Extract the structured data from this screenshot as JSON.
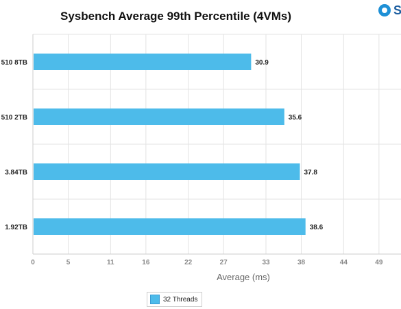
{
  "chart_data": {
    "type": "bar",
    "orientation": "horizontal",
    "title": "Sysbench Average 99th Percentile (4VMs)",
    "xlabel": "Average (ms)",
    "ylabel": "",
    "categories": [
      "510 8TB",
      "510 2TB",
      "3.84TB",
      "1.92TB"
    ],
    "series": [
      {
        "name": "32 Threads",
        "values": [
          30.9,
          35.6,
          37.8,
          38.6
        ],
        "color": "#4dbbea"
      }
    ],
    "xlim": [
      0,
      52.8
    ],
    "xticks": [
      0,
      5,
      11,
      16,
      22,
      27,
      33,
      38,
      44,
      49
    ],
    "grid": true,
    "legend_position": "bottom"
  },
  "brand": {
    "text": "S",
    "icon": "brand-circle-icon"
  },
  "colors": {
    "grid": "#e3e3e3",
    "axis": "#cccccc",
    "tick": "#888888",
    "bar_label": "#222222"
  }
}
